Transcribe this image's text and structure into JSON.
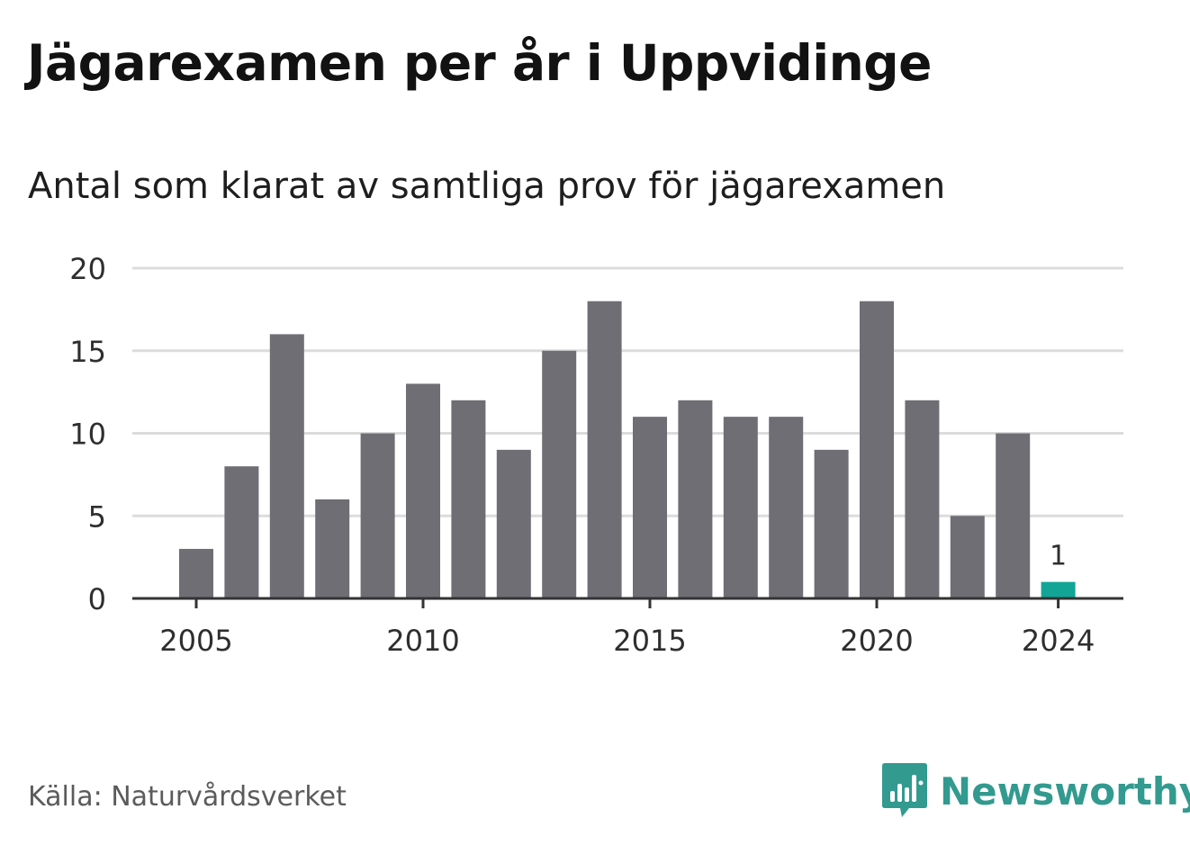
{
  "header": {
    "title": "Jägarexamen per år i Uppvidinge",
    "subtitle": "Antal som klarat av samtliga prov för jägarexamen"
  },
  "footer": {
    "source": "Källa: Naturvårdsverket",
    "brand": "Newsworthy",
    "brand_icon": "bar-chart-speech-bubble-icon"
  },
  "colors": {
    "bar": "#6f6e74",
    "highlight": "#12a596",
    "grid": "#dcdcdc",
    "axis": "#333333",
    "brand": "#329a8f"
  },
  "chart_data": {
    "type": "bar",
    "title": "Jägarexamen per år i Uppvidinge",
    "subtitle": "Antal som klarat av samtliga prov för jägarexamen",
    "xlabel": "",
    "ylabel": "",
    "x": [
      2005,
      2006,
      2007,
      2008,
      2009,
      2010,
      2011,
      2012,
      2013,
      2014,
      2015,
      2016,
      2017,
      2018,
      2019,
      2020,
      2021,
      2022,
      2023,
      2024
    ],
    "values": [
      3,
      8,
      16,
      6,
      10,
      13,
      12,
      9,
      15,
      18,
      11,
      12,
      11,
      11,
      9,
      18,
      12,
      5,
      10,
      1
    ],
    "highlighted": [
      2024
    ],
    "data_labels": [
      {
        "x": 2024,
        "text": "1"
      }
    ],
    "xticks": [
      2005,
      2010,
      2015,
      2020,
      2024
    ],
    "yticks": [
      0,
      5,
      10,
      15,
      20
    ],
    "ylim": [
      0,
      20
    ],
    "grid": true
  }
}
